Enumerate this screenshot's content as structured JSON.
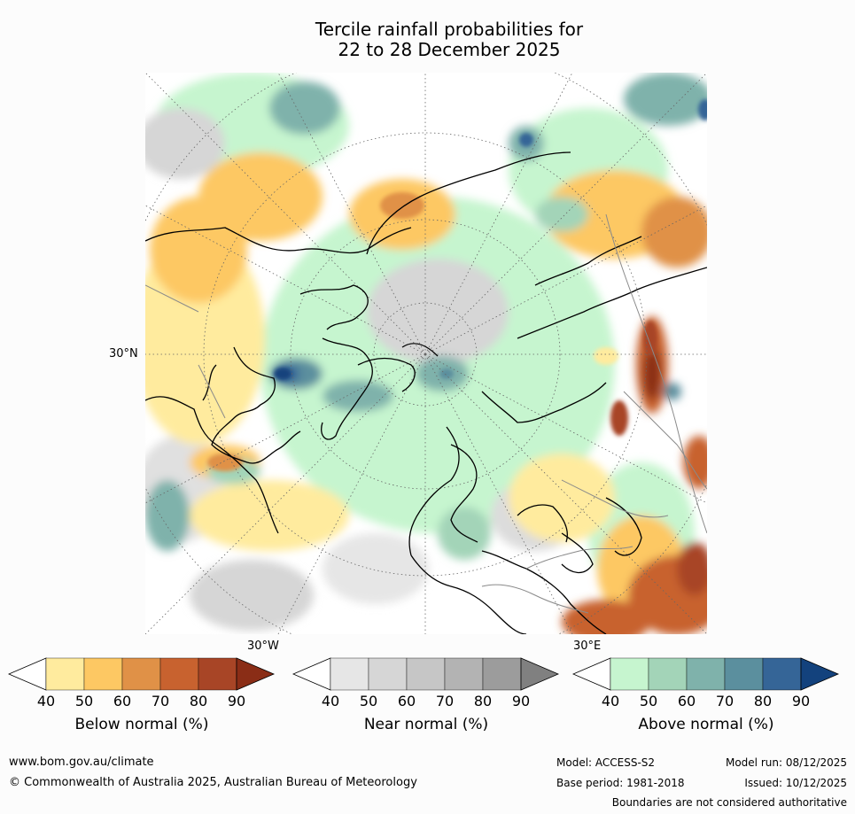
{
  "title": {
    "line1": "Tercile rainfall probabilities for",
    "line2": "22 to 28 December 2025"
  },
  "map": {
    "axis_labels": {
      "lat_left": "30°N",
      "lon_bottom_left": "30°W",
      "lon_bottom_right": "30°E"
    }
  },
  "colorbars": [
    {
      "caption": "Below normal (%)",
      "ticks": [
        "40",
        "50",
        "60",
        "70",
        "80",
        "90"
      ],
      "colors": [
        "#ffffff",
        "#ffeb9e",
        "#fdc863",
        "#e09147",
        "#c8622f",
        "#a84526",
        "#8a2d16"
      ]
    },
    {
      "caption": "Near normal (%)",
      "ticks": [
        "40",
        "50",
        "60",
        "70",
        "80",
        "90"
      ],
      "colors": [
        "#ffffff",
        "#e6e6e6",
        "#d6d6d6",
        "#c6c6c6",
        "#b3b3b3",
        "#9c9c9c",
        "#808080"
      ]
    },
    {
      "caption": "Above normal (%)",
      "ticks": [
        "40",
        "50",
        "60",
        "70",
        "80",
        "90"
      ],
      "colors": [
        "#ffffff",
        "#c6f5cf",
        "#a3d4b8",
        "#7fb2ab",
        "#5b8f9e",
        "#356597",
        "#13427d"
      ]
    }
  ],
  "footer": {
    "website": "www.bom.gov.au/climate",
    "copyright": "© Commonwealth of Australia 2025, Australian Bureau of Meteorology",
    "model": "Model: ACCESS-S2",
    "model_run": "Model run: 08/12/2025",
    "base_period": "Base period: 1981-2018",
    "issued": "Issued: 10/12/2025",
    "disclaimer": "Boundaries are not considered authoritative"
  }
}
